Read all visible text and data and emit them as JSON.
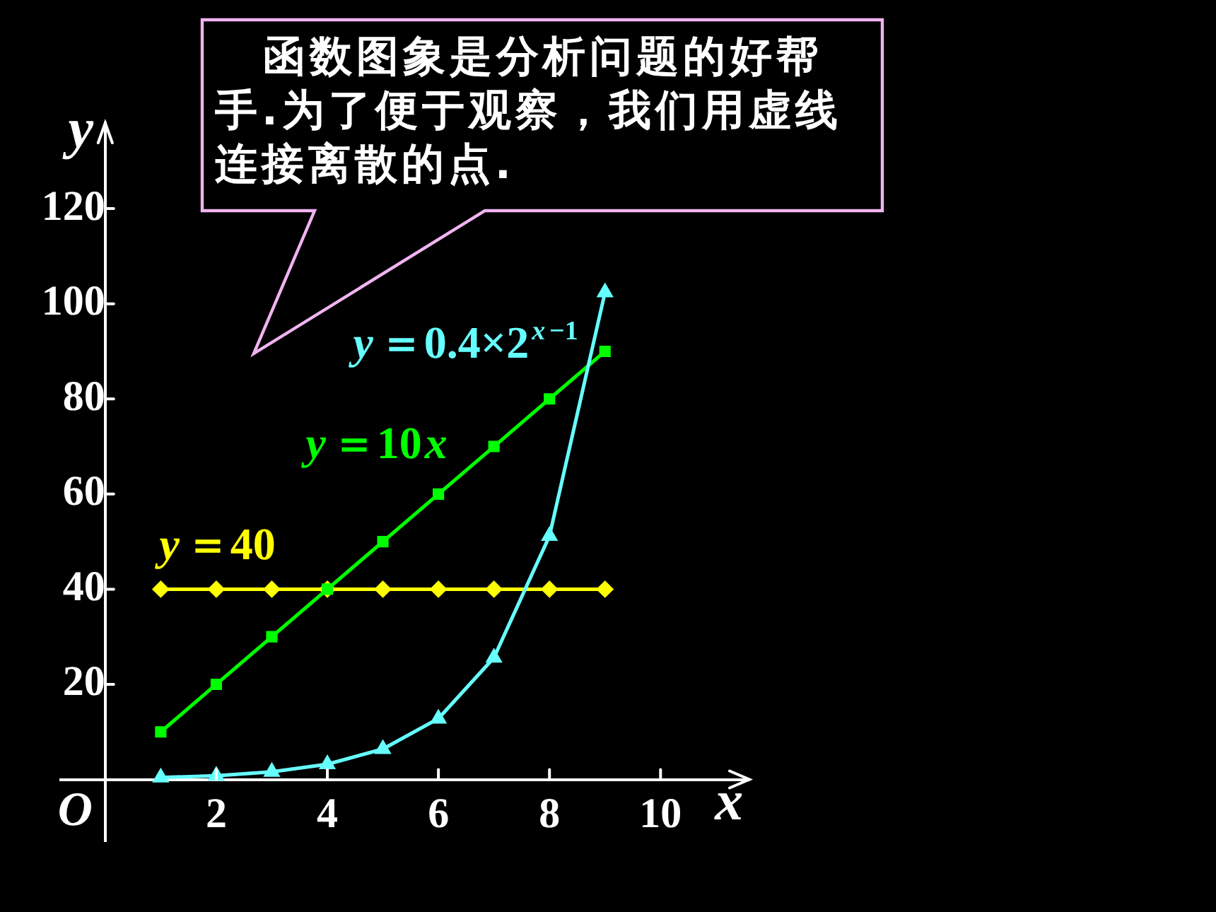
{
  "chart_data": {
    "type": "line",
    "xlabel": "x",
    "ylabel": "y",
    "annotations": [
      "函数图象是分析问题的好帮手.为了便于观察，我们用虚线连接离散的点.",
      "O"
    ],
    "x": [
      1,
      2,
      3,
      4,
      5,
      6,
      7,
      8,
      9
    ],
    "series": [
      {
        "name": "y＝0.4×2$^{x−1}$",
        "color": "#66ffff",
        "marker": "triangle",
        "values": [
          0.4,
          0.8,
          1.6,
          3.2,
          6.4,
          12.8,
          25.6,
          51.2,
          102.4
        ]
      },
      {
        "name": "y＝10x",
        "color": "#00ff00",
        "marker": "square",
        "values": [
          10,
          20,
          30,
          40,
          50,
          60,
          70,
          80,
          90
        ]
      },
      {
        "name": "y＝40",
        "color": "#ffff00",
        "marker": "diamond",
        "values": [
          40,
          40,
          40,
          40,
          40,
          40,
          40,
          40,
          40
        ]
      }
    ],
    "xlim": [
      -0.8,
      11.6
    ],
    "ylim": [
      -13,
      138
    ],
    "xticks": [
      2,
      4,
      6,
      8,
      10
    ],
    "yticks": [
      20,
      40,
      60,
      80,
      100,
      120
    ],
    "line_style": "solid"
  }
}
